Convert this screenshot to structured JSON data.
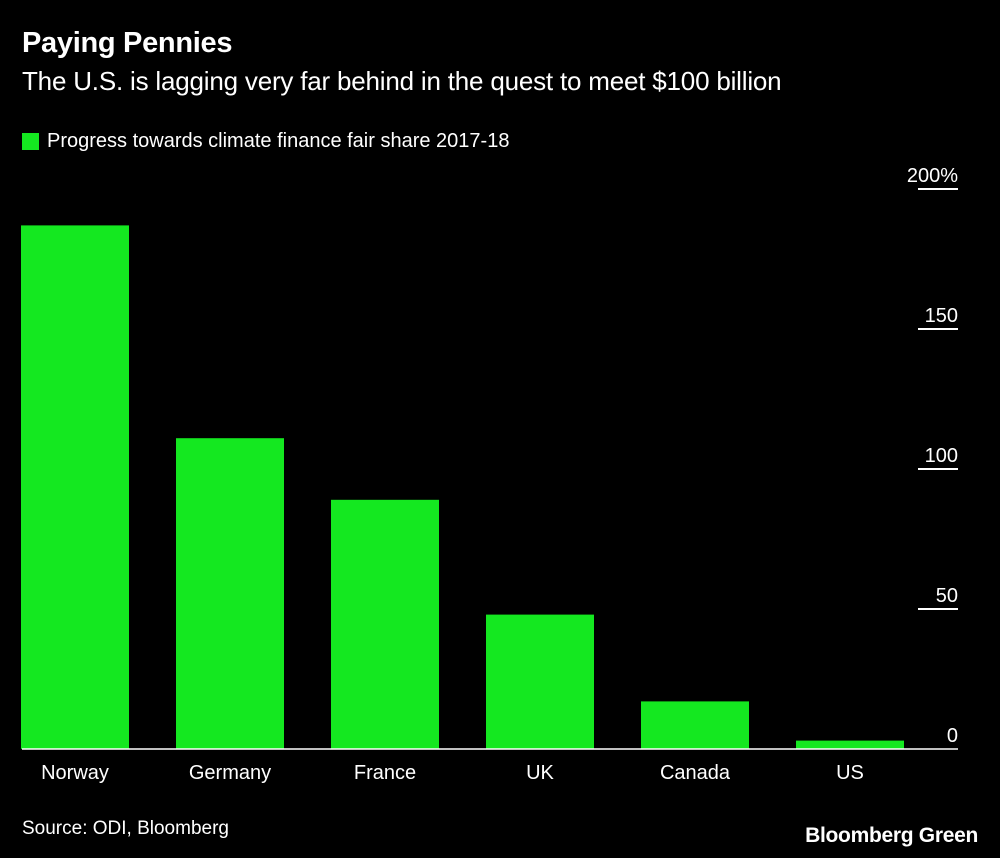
{
  "header": {
    "title": "Paying Pennies",
    "subtitle": "The U.S. is lagging very far behind in the quest to meet $100 billion"
  },
  "legend": {
    "label": "Progress towards climate finance fair share 2017-18"
  },
  "footer": {
    "source": "Source: ODI, Bloomberg",
    "brand": "Bloomberg Green"
  },
  "colors": {
    "bar": "#14e820",
    "background": "#000000",
    "text": "#ffffff"
  },
  "chart_data": {
    "type": "bar",
    "categories": [
      "Norway",
      "Germany",
      "France",
      "UK",
      "Canada",
      "US"
    ],
    "values": [
      187,
      111,
      89,
      48,
      17,
      3
    ],
    "ylim": [
      0,
      200
    ],
    "yticks": [
      {
        "value": 0,
        "label": "0"
      },
      {
        "value": 50,
        "label": "50"
      },
      {
        "value": 100,
        "label": "100"
      },
      {
        "value": 150,
        "label": "150"
      },
      {
        "value": 200,
        "label": "200%"
      }
    ],
    "legend": [
      "Progress towards climate finance fair share 2017-18"
    ],
    "legend_position": "top-left",
    "axis_side": "right",
    "grid": false
  }
}
